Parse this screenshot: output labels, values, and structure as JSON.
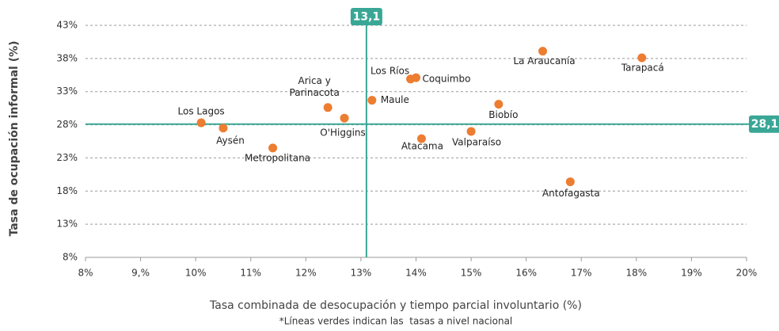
{
  "chart_data": {
    "type": "scatter",
    "xlabel": "Tasa combinada de desocupación y tiempo parcial involuntario (%)",
    "ylabel": "Tasa de ocupación informal (%)",
    "note": "*Líneas verdes indican las  tasas a nivel nacional",
    "categories": [
      "Los Lagos",
      "Aysén",
      "Metropolitana",
      "Arica y Parinacota",
      "O'Higgins",
      "Maule",
      "Los Ríos",
      "Coquimbo",
      "Atacama",
      "Valparaíso",
      "Biobío",
      "La Araucanía",
      "Tarapacá",
      "Antofagasta"
    ],
    "x": [
      10.1,
      10.5,
      11.4,
      12.4,
      12.7,
      13.2,
      13.9,
      14.0,
      14.1,
      15.0,
      15.5,
      16.3,
      18.1,
      16.8
    ],
    "values": [
      28.3,
      27.5,
      24.5,
      30.6,
      29.0,
      31.7,
      34.9,
      35.1,
      25.9,
      27.0,
      31.1,
      39.1,
      38.1,
      19.4
    ],
    "color": "#ed7d31",
    "reference_lines": {
      "x": {
        "value": 13.1,
        "label": "13,1"
      },
      "y": {
        "value": 28.1,
        "label": "28,1"
      },
      "color": "#3aa796"
    },
    "xlim": [
      8,
      20
    ],
    "xticks": [
      {
        "value": 8,
        "label": "8%"
      },
      {
        "value": 9,
        "label": "9,%"
      },
      {
        "value": 10,
        "label": "10%"
      },
      {
        "value": 11,
        "label": "11%"
      },
      {
        "value": 12,
        "label": "12%"
      },
      {
        "value": 13,
        "label": "13%"
      },
      {
        "value": 14,
        "label": "14%"
      },
      {
        "value": 15,
        "label": "15%"
      },
      {
        "value": 16,
        "label": "16%"
      },
      {
        "value": 17,
        "label": "17%"
      },
      {
        "value": 18,
        "label": "18%"
      },
      {
        "value": 19,
        "label": "19%"
      },
      {
        "value": 20,
        "label": "20%"
      }
    ],
    "ylim": [
      8,
      43
    ],
    "yticks": [
      {
        "value": 8,
        "label": "8%"
      },
      {
        "value": 13,
        "label": "13%"
      },
      {
        "value": 18,
        "label": "18%"
      },
      {
        "value": 23,
        "label": "23%"
      },
      {
        "value": 28,
        "label": "28%"
      },
      {
        "value": 33,
        "label": "33%"
      },
      {
        "value": 38,
        "label": "38%"
      },
      {
        "value": 43,
        "label": "43%"
      }
    ],
    "grid": true
  }
}
